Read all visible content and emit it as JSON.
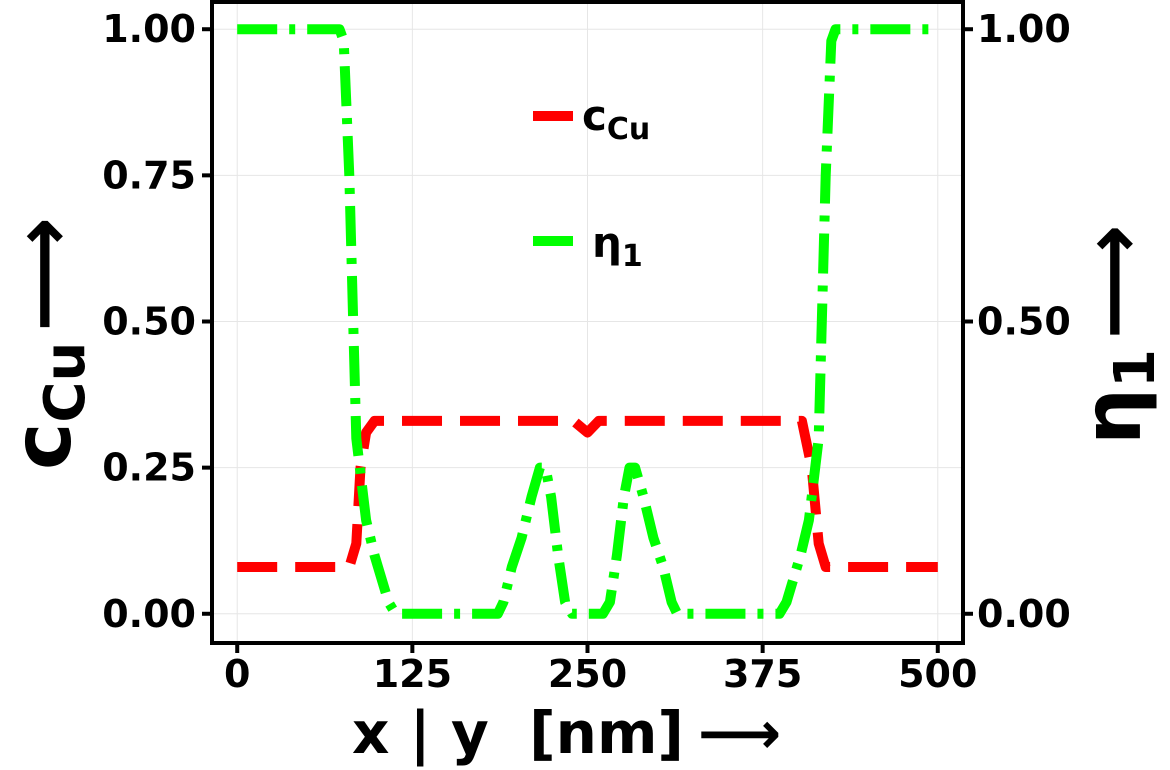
{
  "chart_data": {
    "type": "line",
    "xlabel": "x | y  [nm]",
    "xlabel_arrow": "⟶",
    "ylabel_left": {
      "main": "c",
      "sub": "Cu"
    },
    "ylabel_right": {
      "main": "η",
      "sub": "1"
    },
    "y_arrow": "⟶",
    "xlim": [
      -18,
      518
    ],
    "ylim_left": [
      -0.05,
      1.05
    ],
    "ylim_right": [
      -0.05,
      1.05
    ],
    "x_ticks": [
      "0",
      "125",
      "250",
      "375",
      "500"
    ],
    "x_tick_values": [
      0,
      125,
      250,
      375,
      500
    ],
    "y_ticks_left": [
      "0.00",
      "0.25",
      "0.50",
      "0.75",
      "1.00"
    ],
    "y_ticks_right": [
      "0.00",
      "0.50",
      "1.00"
    ],
    "grid": true,
    "legend_position": "top-center",
    "series": [
      {
        "name": "c",
        "name_sub": "Cu",
        "axis": "left",
        "color": "#ff0000",
        "style": "dashed",
        "points": [
          [
            0,
            0.08
          ],
          [
            80,
            0.08
          ],
          [
            85,
            0.12
          ],
          [
            88,
            0.25
          ],
          [
            92,
            0.31
          ],
          [
            98,
            0.33
          ],
          [
            240,
            0.33
          ],
          [
            250,
            0.31
          ],
          [
            258,
            0.33
          ],
          [
            385,
            0.33
          ],
          [
            403,
            0.33
          ],
          [
            410,
            0.25
          ],
          [
            415,
            0.12
          ],
          [
            420,
            0.08
          ],
          [
            500,
            0.08
          ]
        ]
      },
      {
        "name": "η",
        "name_sub": "1",
        "axis": "right",
        "color": "#00ff00",
        "style": "dashdot",
        "points": [
          [
            0,
            1.0
          ],
          [
            73,
            1.0
          ],
          [
            76,
            0.98
          ],
          [
            80,
            0.75
          ],
          [
            85,
            0.3
          ],
          [
            92,
            0.16
          ],
          [
            98,
            0.1
          ],
          [
            103,
            0.06
          ],
          [
            108,
            0.02
          ],
          [
            113,
            0.0
          ],
          [
            186,
            0.0
          ],
          [
            190,
            0.02
          ],
          [
            196,
            0.08
          ],
          [
            203,
            0.13
          ],
          [
            210,
            0.2
          ],
          [
            216,
            0.25
          ],
          [
            220,
            0.25
          ],
          [
            224,
            0.2
          ],
          [
            229,
            0.1
          ],
          [
            234,
            0.02
          ],
          [
            239,
            0.0
          ],
          [
            261,
            0.0
          ],
          [
            266,
            0.02
          ],
          [
            271,
            0.1
          ],
          [
            276,
            0.2
          ],
          [
            280,
            0.25
          ],
          [
            284,
            0.25
          ],
          [
            290,
            0.2
          ],
          [
            297,
            0.13
          ],
          [
            304,
            0.08
          ],
          [
            310,
            0.02
          ],
          [
            314,
            0.0
          ],
          [
            387,
            0.0
          ],
          [
            392,
            0.02
          ],
          [
            397,
            0.06
          ],
          [
            402,
            0.1
          ],
          [
            408,
            0.16
          ],
          [
            415,
            0.3
          ],
          [
            420,
            0.75
          ],
          [
            424,
            0.98
          ],
          [
            427,
            1.0
          ],
          [
            500,
            1.0
          ]
        ]
      }
    ]
  }
}
